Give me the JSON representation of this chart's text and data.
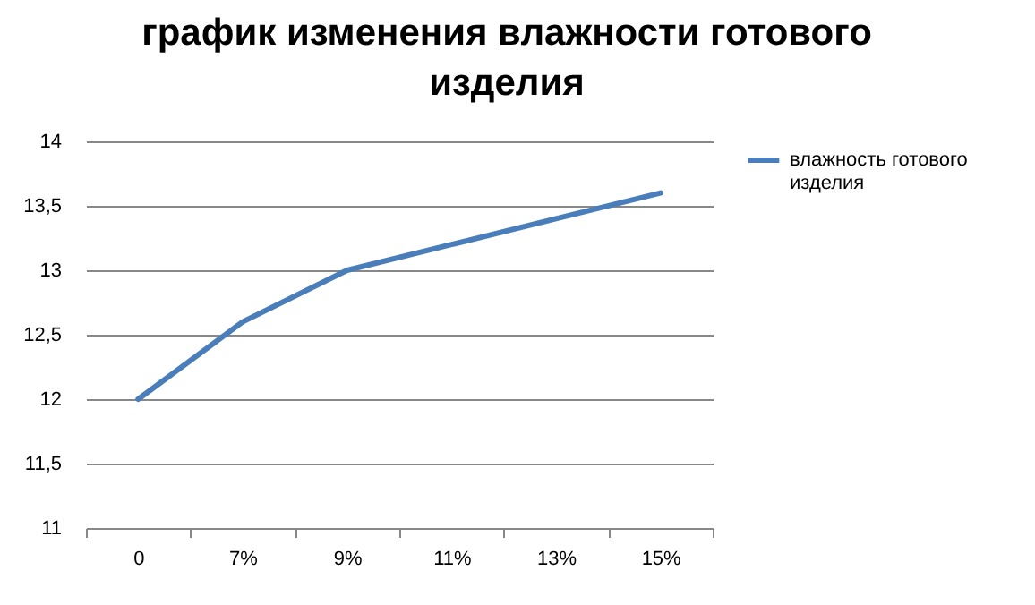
{
  "chart_data": {
    "type": "line",
    "title": "график изменения влажности готового изделия",
    "categories": [
      "0",
      "7%",
      "9%",
      "11%",
      "13%",
      "15%"
    ],
    "series": [
      {
        "name": "влажность готового изделия",
        "color": "#4a7ebb",
        "values": [
          12,
          12.6,
          13,
          13.2,
          13.4,
          13.6
        ]
      }
    ],
    "ylim": [
      11,
      14
    ],
    "yticks": [
      11,
      {
        "value": 11.5,
        "label": "11,5"
      },
      12,
      {
        "value": 12.5,
        "label": "12,5"
      },
      13,
      {
        "value": 13.5,
        "label": "13,5"
      },
      14
    ],
    "grid": "y",
    "legend": "right",
    "marker": "none",
    "line_style": "solid"
  }
}
